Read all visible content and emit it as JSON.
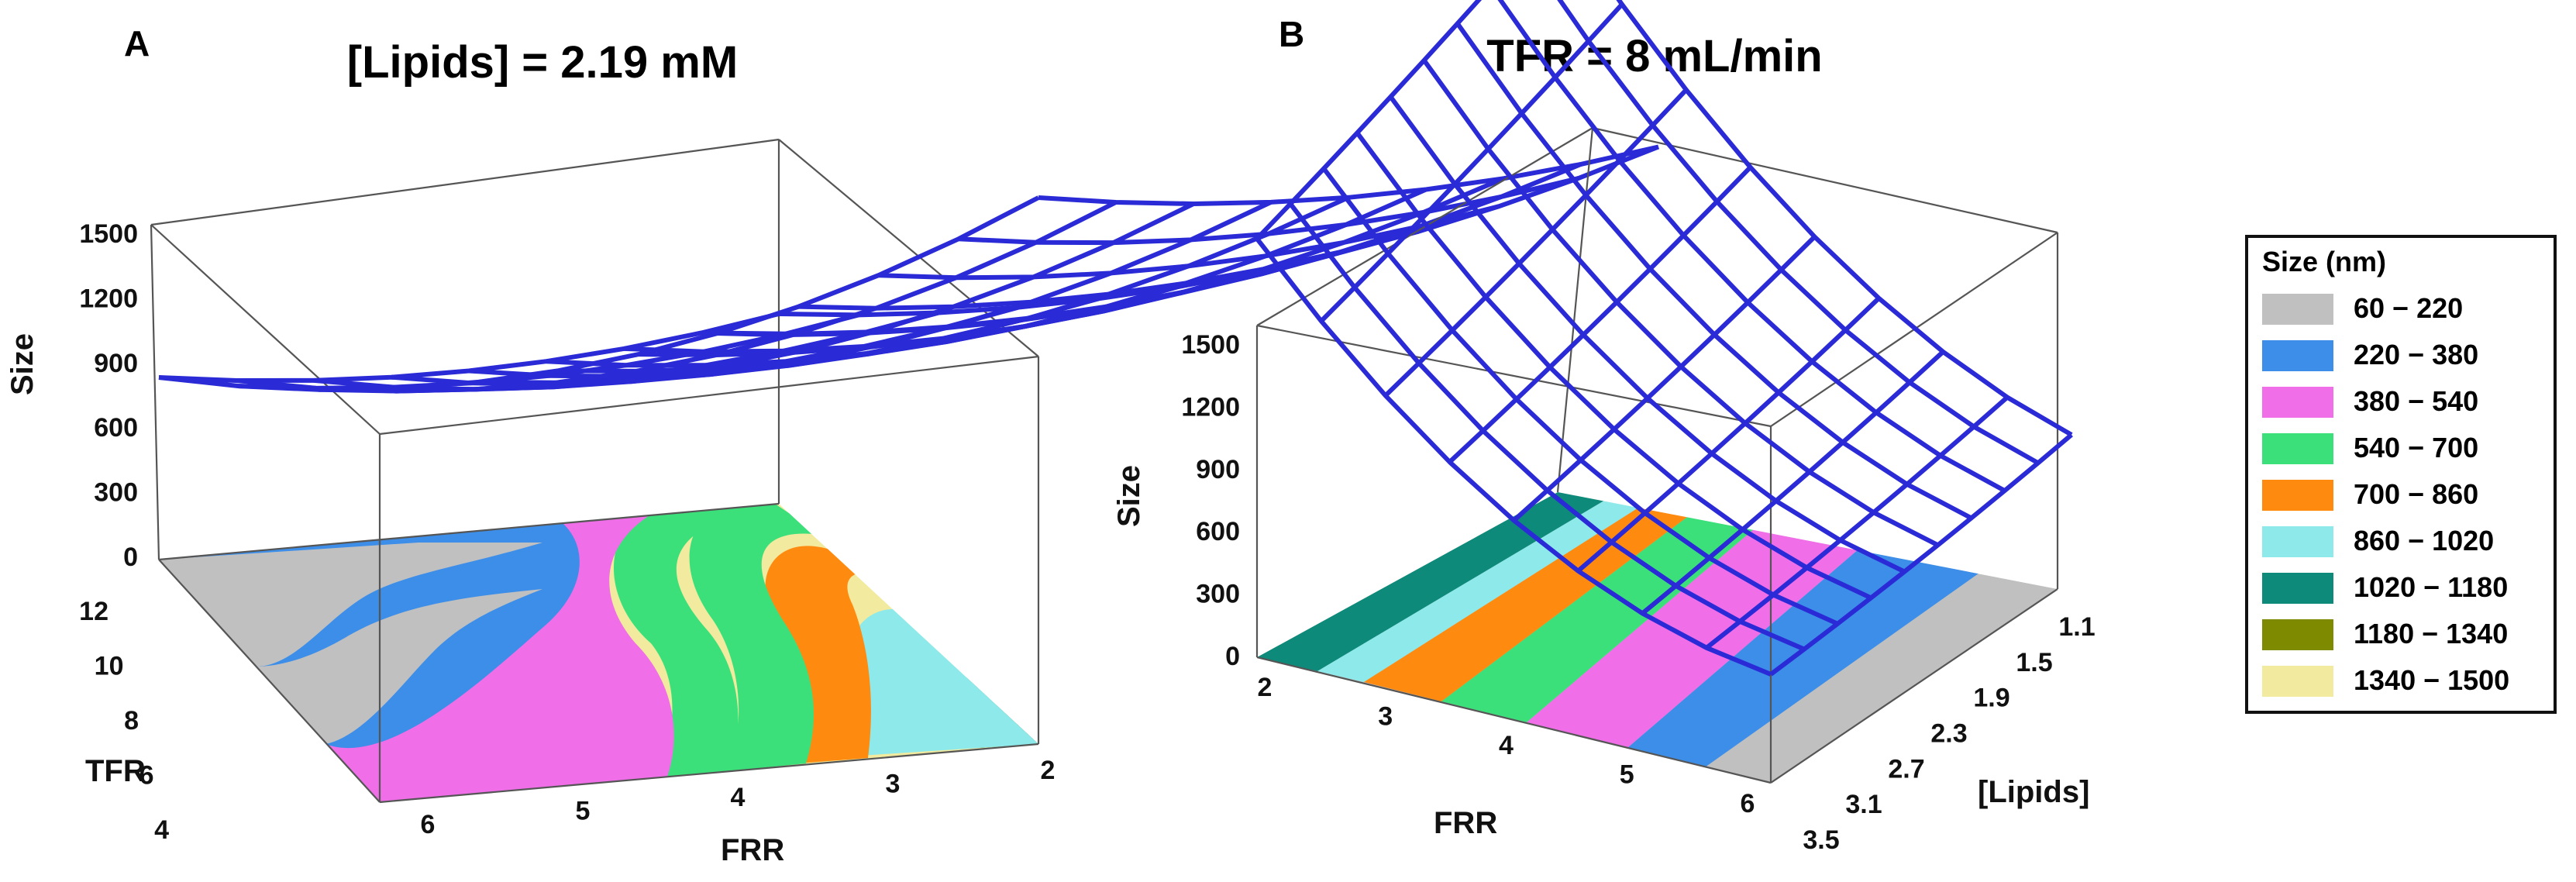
{
  "colors": {
    "mesh": "#2a2ad6",
    "box": "#555555"
  },
  "legend": {
    "title": "Size (nm)",
    "entries": [
      {
        "label": "60 − 220",
        "color": "#c0c0c0"
      },
      {
        "label": "220 − 380",
        "color": "#3d8ee8"
      },
      {
        "label": "380 − 540",
        "color": "#f06ee8"
      },
      {
        "label": "540 − 700",
        "color": "#3be07a"
      },
      {
        "label": "700 − 860",
        "color": "#ff8a10"
      },
      {
        "label": "860 − 1020",
        "color": "#8eeaea"
      },
      {
        "label": "1020 − 1180",
        "color": "#0e8a7a"
      },
      {
        "label": "1180 − 1340",
        "color": "#7e8a00"
      },
      {
        "label": "1340 − 1500",
        "color": "#f2ea9e"
      }
    ]
  },
  "chart_data": [
    {
      "panel": "A",
      "type": "surface3d",
      "title": "[Lipids] = 2.19 mM",
      "zlabel": "Size",
      "xlabel": "FRR",
      "ylabel": "TFR",
      "z_ticks": [
        "0",
        "300",
        "600",
        "900",
        "1200",
        "1500"
      ],
      "x_ticks": [
        "6",
        "5",
        "4",
        "3",
        "2"
      ],
      "y_ticks": [
        "4",
        "6",
        "8",
        "10",
        "12"
      ],
      "zlim": [
        0,
        1500
      ],
      "x_range": [
        2,
        6
      ],
      "y_range": [
        4,
        12
      ],
      "note": "Response surface of particle size vs FRR and TFR at fixed lipid concentration; size increases as FRR decreases toward 2, with a shallow rise at high TFR."
    },
    {
      "panel": "B",
      "type": "surface3d",
      "title": "TFR = 8 mL/min",
      "zlabel": "Size",
      "xlabel": "FRR",
      "ylabel": "[Lipids]",
      "z_ticks": [
        "0",
        "300",
        "600",
        "900",
        "1200",
        "1500"
      ],
      "x_ticks": [
        "2",
        "3",
        "4",
        "5",
        "6"
      ],
      "y_ticks": [
        "3.5",
        "3.1",
        "2.7",
        "2.3",
        "1.9",
        "1.5",
        "1.1"
      ],
      "zlim": [
        0,
        1500
      ],
      "x_range": [
        2,
        6
      ],
      "y_range": [
        1.1,
        3.5
      ],
      "note": "Response surface of particle size vs FRR and lipid concentration at fixed TFR; size is highest at FRR 2 and decreases toward FRR 6."
    }
  ]
}
